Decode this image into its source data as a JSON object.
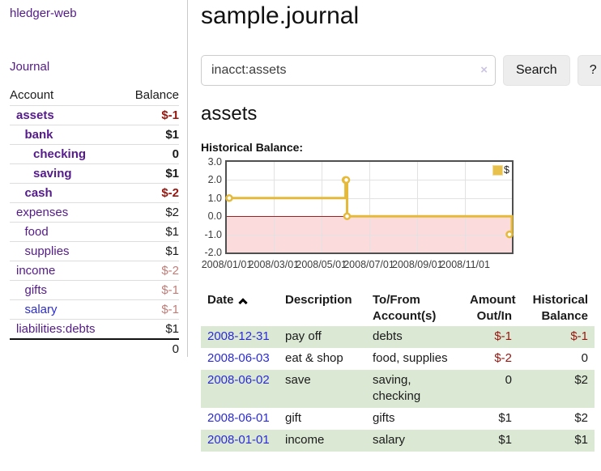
{
  "app": {
    "brand": "hledger-web",
    "nav_journal": "Journal"
  },
  "sidebar": {
    "table": {
      "account_header": "Account",
      "balance_header": "Balance",
      "accounts": [
        {
          "name": "assets",
          "balance": "$-1",
          "depth": 1,
          "bold": true,
          "balance_style": "neg"
        },
        {
          "name": "bank",
          "balance": "$1",
          "depth": 2,
          "bold": true,
          "balance_style": ""
        },
        {
          "name": "checking",
          "balance": "0",
          "depth": 3,
          "bold": true,
          "balance_style": ""
        },
        {
          "name": "saving",
          "balance": "$1",
          "depth": 3,
          "bold": true,
          "balance_style": ""
        },
        {
          "name": "cash",
          "balance": "$-2",
          "depth": 2,
          "bold": true,
          "balance_style": "neg"
        },
        {
          "name": "expenses",
          "balance": "$2",
          "depth": 1,
          "bold": false,
          "balance_style": ""
        },
        {
          "name": "food",
          "balance": "$1",
          "depth": 2,
          "bold": false,
          "balance_style": ""
        },
        {
          "name": "supplies",
          "balance": "$1",
          "depth": 2,
          "bold": false,
          "balance_style": ""
        },
        {
          "name": "income",
          "balance": "$-2",
          "depth": 1,
          "bold": false,
          "balance_style": "neglight"
        },
        {
          "name": "gifts",
          "balance": "$-1",
          "depth": 2,
          "bold": false,
          "balance_style": "neglight"
        },
        {
          "name": "salary",
          "balance": "$-1",
          "depth": 2,
          "bold": false,
          "balance_style": "neglight",
          "link": "blue"
        },
        {
          "name": "liabilities:debts",
          "balance": "$1",
          "depth": 1,
          "bold": false,
          "balance_style": ""
        }
      ],
      "total": "0"
    }
  },
  "main": {
    "title": "sample.journal",
    "search": {
      "value": "inacct:assets",
      "clear_icon": "×",
      "button_label": "Search",
      "help_label": "?"
    },
    "account_heading": "assets",
    "chart_label": "Historical Balance:",
    "register": {
      "columns": [
        "Date",
        "Description",
        "To/From Account(s)",
        "Amount Out/In",
        "Historical Balance"
      ],
      "sort_icon": "chevron-up-icon",
      "rows": [
        {
          "date": "2008-12-31",
          "description": "pay off",
          "accounts": "debts",
          "amount": "$-1",
          "amount_style": "neg",
          "balance": "$-1",
          "balance_style": "neg"
        },
        {
          "date": "2008-06-03",
          "description": "eat & shop",
          "accounts": "food, supplies",
          "amount": "$-2",
          "amount_style": "neg",
          "balance": "0",
          "balance_style": ""
        },
        {
          "date": "2008-06-02",
          "description": "save",
          "accounts": "saving, checking",
          "amount": "0",
          "amount_style": "",
          "balance": "$2",
          "balance_style": ""
        },
        {
          "date": "2008-06-01",
          "description": "gift",
          "accounts": "gifts",
          "amount": "$1",
          "amount_style": "",
          "balance": "$2",
          "balance_style": ""
        },
        {
          "date": "2008-01-01",
          "description": "income",
          "accounts": "salary",
          "amount": "$1",
          "amount_style": "",
          "balance": "$1",
          "balance_style": ""
        }
      ]
    }
  },
  "chart_data": {
    "type": "line",
    "title": "Historical Balance",
    "interpolation": "step",
    "legend": [
      {
        "label": "$",
        "color": "#e8c14d"
      }
    ],
    "legend_position": "top-right",
    "grid": true,
    "xlim": [
      "2008-01-01",
      "2008-12-31"
    ],
    "ylim": [
      -2.0,
      3.0
    ],
    "y_ticks": [
      3.0,
      2.0,
      1.0,
      0.0,
      -1.0,
      -2.0
    ],
    "x_ticks": [
      {
        "date": "2008-01-01",
        "label": "2008/01/01"
      },
      {
        "date": "2008-03-01",
        "label": "2008/03/01"
      },
      {
        "date": "2008-05-01",
        "label": "2008/05/01"
      },
      {
        "date": "2008-07-01",
        "label": "2008/07/01"
      },
      {
        "date": "2008-09-01",
        "label": "2008/09/01"
      },
      {
        "date": "2008-11-01",
        "label": "2008/11/01"
      }
    ],
    "series": [
      {
        "name": "$",
        "color": "#e5ba3a",
        "points": [
          {
            "date": "2008-01-01",
            "value": 1
          },
          {
            "date": "2008-06-01",
            "value": 2
          },
          {
            "date": "2008-06-02",
            "value": 2
          },
          {
            "date": "2008-06-03",
            "value": 0
          },
          {
            "date": "2008-12-31",
            "value": -1
          }
        ]
      }
    ],
    "negative_region_color": "#fbdbdb",
    "zero_line_color": "#a02020"
  },
  "colors": {
    "link_purple": "#551a8b",
    "link_blue": "#2b2bd6",
    "negative": "#97160f",
    "negative_light": "#c07d78",
    "row_stripe_green": "#dbe9d4",
    "series_gold": "#e5ba3a",
    "negative_region_pink": "#fbdbdb"
  }
}
